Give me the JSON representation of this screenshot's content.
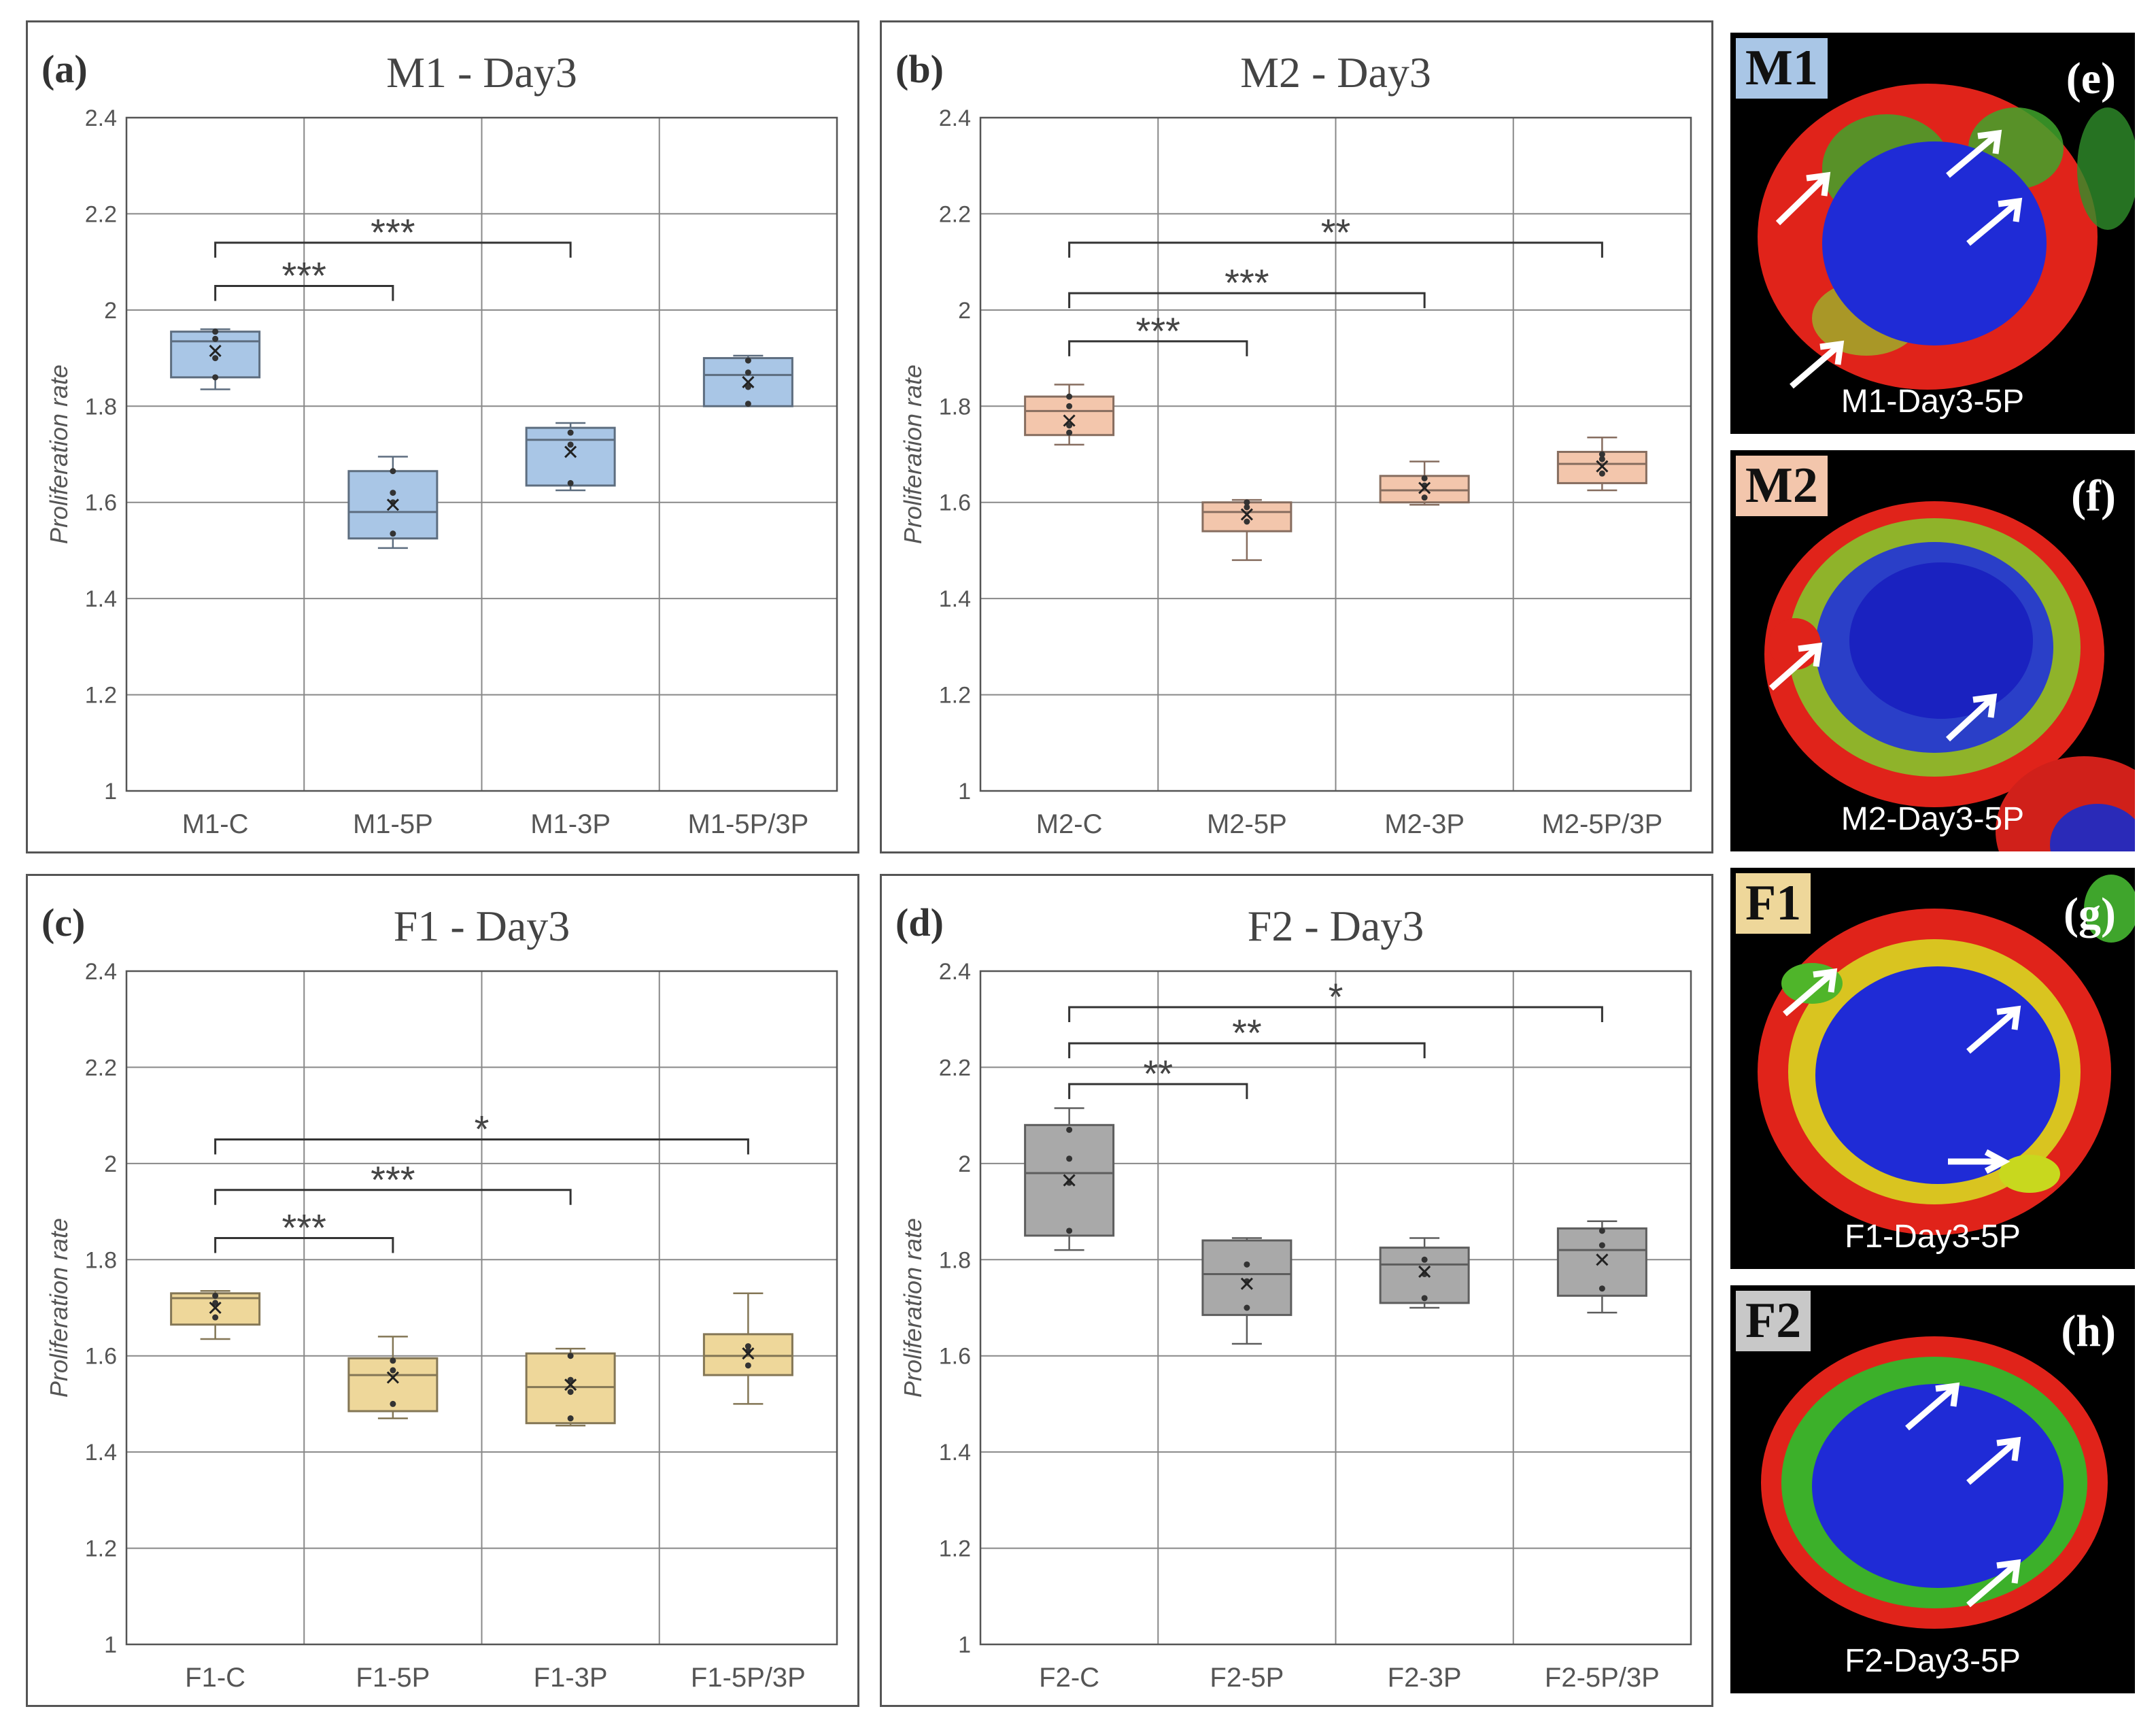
{
  "chart_data": [
    {
      "type": "box",
      "panel_label": "(a)",
      "title": "M1 - Day3",
      "ylabel": "Proliferation rate",
      "ylim": [
        1,
        2.4
      ],
      "yticks": [
        "1",
        "1.2",
        "1.4",
        "1.6",
        "1.8",
        "2",
        "2.2",
        "2.4"
      ],
      "grid": true,
      "color": "#a9c6e6",
      "categories": [
        "M1-C",
        "M1-5P",
        "M1-3P",
        "M1-5P/3P"
      ],
      "boxes": [
        {
          "min": 1.835,
          "q1": 1.86,
          "median": 1.935,
          "q3": 1.955,
          "max": 1.96,
          "mean": 1.915,
          "points": [
            1.86,
            1.9,
            1.94,
            1.955
          ]
        },
        {
          "min": 1.505,
          "q1": 1.525,
          "median": 1.58,
          "q3": 1.665,
          "max": 1.695,
          "mean": 1.595,
          "points": [
            1.535,
            1.6,
            1.62,
            1.665
          ]
        },
        {
          "min": 1.625,
          "q1": 1.635,
          "median": 1.73,
          "q3": 1.755,
          "max": 1.765,
          "mean": 1.705,
          "points": [
            1.64,
            1.72,
            1.745
          ]
        },
        {
          "min": 1.8,
          "q1": 1.8,
          "median": 1.865,
          "q3": 1.9,
          "max": 1.905,
          "mean": 1.85,
          "points": [
            1.805,
            1.84,
            1.87,
            1.895
          ]
        }
      ],
      "significance": [
        {
          "from": 0,
          "to": 1,
          "y": 2.05,
          "label": "***"
        },
        {
          "from": 0,
          "to": 2,
          "y": 2.14,
          "label": "***"
        }
      ]
    },
    {
      "type": "box",
      "panel_label": "(b)",
      "title": "M2 - Day3",
      "ylabel": "Proliferation rate",
      "ylim": [
        1,
        2.4
      ],
      "yticks": [
        "1",
        "1.2",
        "1.4",
        "1.6",
        "1.8",
        "2",
        "2.2",
        "2.4"
      ],
      "grid": true,
      "color": "#f3c6ac",
      "categories": [
        "M2-C",
        "M2-5P",
        "M2-3P",
        "M2-5P/3P"
      ],
      "boxes": [
        {
          "min": 1.72,
          "q1": 1.74,
          "median": 1.79,
          "q3": 1.82,
          "max": 1.845,
          "mean": 1.77,
          "points": [
            1.745,
            1.76,
            1.8,
            1.82
          ]
        },
        {
          "min": 1.48,
          "q1": 1.54,
          "median": 1.58,
          "q3": 1.6,
          "max": 1.605,
          "mean": 1.575,
          "points": [
            1.56,
            1.59,
            1.6
          ]
        },
        {
          "min": 1.595,
          "q1": 1.6,
          "median": 1.625,
          "q3": 1.655,
          "max": 1.685,
          "mean": 1.63,
          "points": [
            1.61,
            1.635,
            1.65
          ]
        },
        {
          "min": 1.625,
          "q1": 1.64,
          "median": 1.68,
          "q3": 1.705,
          "max": 1.735,
          "mean": 1.675,
          "points": [
            1.66,
            1.69,
            1.7
          ]
        }
      ],
      "significance": [
        {
          "from": 0,
          "to": 1,
          "y": 1.935,
          "label": "***"
        },
        {
          "from": 0,
          "to": 2,
          "y": 2.035,
          "label": "***"
        },
        {
          "from": 0,
          "to": 3,
          "y": 2.14,
          "label": "**"
        }
      ]
    },
    {
      "type": "box",
      "panel_label": "(c)",
      "title": "F1 - Day3",
      "ylabel": "Proliferation rate",
      "ylim": [
        1,
        2.4
      ],
      "yticks": [
        "1",
        "1.2",
        "1.4",
        "1.6",
        "1.8",
        "2",
        "2.2",
        "2.4"
      ],
      "grid": true,
      "color": "#eed79a",
      "categories": [
        "F1-C",
        "F1-5P",
        "F1-3P",
        "F1-5P/3P"
      ],
      "boxes": [
        {
          "min": 1.635,
          "q1": 1.665,
          "median": 1.72,
          "q3": 1.73,
          "max": 1.735,
          "mean": 1.7,
          "points": [
            1.68,
            1.71,
            1.725
          ]
        },
        {
          "min": 1.47,
          "q1": 1.485,
          "median": 1.56,
          "q3": 1.595,
          "max": 1.64,
          "mean": 1.555,
          "points": [
            1.5,
            1.57,
            1.59
          ]
        },
        {
          "min": 1.455,
          "q1": 1.46,
          "median": 1.535,
          "q3": 1.605,
          "max": 1.615,
          "mean": 1.54,
          "points": [
            1.47,
            1.525,
            1.55,
            1.6
          ]
        },
        {
          "min": 1.5,
          "q1": 1.56,
          "median": 1.6,
          "q3": 1.645,
          "max": 1.73,
          "mean": 1.605,
          "points": [
            1.58,
            1.61,
            1.62
          ]
        }
      ],
      "significance": [
        {
          "from": 0,
          "to": 1,
          "y": 1.845,
          "label": "***"
        },
        {
          "from": 0,
          "to": 2,
          "y": 1.945,
          "label": "***"
        },
        {
          "from": 0,
          "to": 3,
          "y": 2.05,
          "label": "*"
        }
      ]
    },
    {
      "type": "box",
      "panel_label": "(d)",
      "title": "F2 - Day3",
      "ylabel": "Proliferation rate",
      "ylim": [
        1,
        2.4
      ],
      "yticks": [
        "1",
        "1.2",
        "1.4",
        "1.6",
        "1.8",
        "2",
        "2.2",
        "2.4"
      ],
      "grid": true,
      "color": "#a9a9a9",
      "categories": [
        "F2-C",
        "F2-5P",
        "F2-3P",
        "F2-5P/3P"
      ],
      "boxes": [
        {
          "min": 1.82,
          "q1": 1.85,
          "median": 1.98,
          "q3": 2.08,
          "max": 2.115,
          "mean": 1.965,
          "points": [
            1.86,
            1.96,
            2.01,
            2.07
          ]
        },
        {
          "min": 1.625,
          "q1": 1.685,
          "median": 1.77,
          "q3": 1.84,
          "max": 1.845,
          "mean": 1.75,
          "points": [
            1.7,
            1.755,
            1.79
          ]
        },
        {
          "min": 1.7,
          "q1": 1.71,
          "median": 1.79,
          "q3": 1.825,
          "max": 1.845,
          "mean": 1.775,
          "points": [
            1.72,
            1.77,
            1.8
          ]
        },
        {
          "min": 1.69,
          "q1": 1.725,
          "median": 1.82,
          "q3": 1.865,
          "max": 1.88,
          "mean": 1.8,
          "points": [
            1.74,
            1.83,
            1.86
          ]
        }
      ],
      "significance": [
        {
          "from": 0,
          "to": 1,
          "y": 2.165,
          "label": "**"
        },
        {
          "from": 0,
          "to": 2,
          "y": 2.25,
          "label": "**"
        },
        {
          "from": 0,
          "to": 3,
          "y": 2.325,
          "label": "*"
        }
      ]
    }
  ],
  "micrographs": [
    {
      "tag": "M1",
      "tag_color": "#a9c6e6",
      "letter": "(e)",
      "caption": "M1-Day3-5P"
    },
    {
      "tag": "M2",
      "tag_color": "#f3c6ac",
      "letter": "(f)",
      "caption": "M2-Day3-5P"
    },
    {
      "tag": "F1",
      "tag_color": "#eed79a",
      "letter": "(g)",
      "caption": "F1-Day3-5P"
    },
    {
      "tag": "F2",
      "tag_color": "#c8c8c8",
      "letter": "(h)",
      "caption": "F2-Day3-5P"
    }
  ],
  "colors": {
    "grid": "#888888",
    "axis": "#555555",
    "text": "#444444",
    "tick_text": "#555555"
  }
}
